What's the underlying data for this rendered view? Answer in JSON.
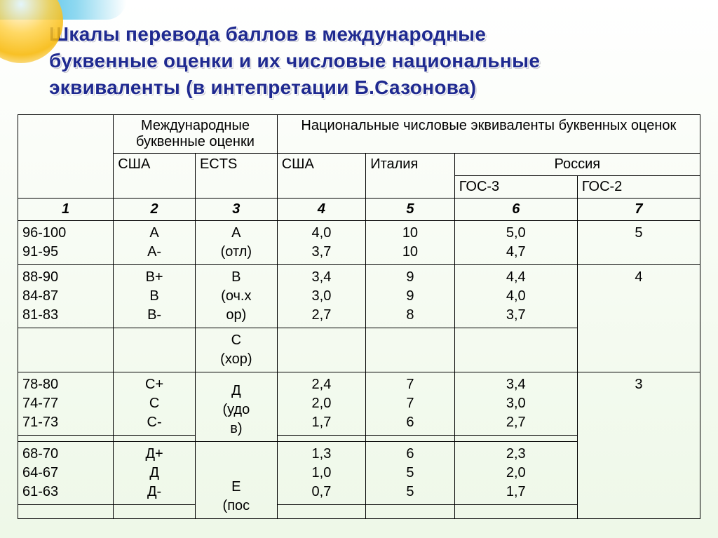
{
  "title_line1": "Шкалы перевода баллов в международные",
  "title_line2": "буквенные оценки и их числовые национальные",
  "title_line3": "эквиваленты  (в интепретации Б.Сазонова)",
  "header": {
    "intl": "Международные буквенные оценки",
    "nat": "Национальные числовые эквиваленты буквенных оценок",
    "usa": "США",
    "ects": "ECTS",
    "italy": "Италия",
    "russia": "Россия",
    "gos3": "ГОС-3",
    "gos2": "ГОС-2"
  },
  "colnums": [
    "1",
    "2",
    "3",
    "4",
    "5",
    "6",
    "7"
  ],
  "rows": {
    "r1": {
      "range": "96-100\n91-95",
      "usa_l": "A\nA-",
      "ects": "A\n(отл)",
      "usa_n": "4,0\n3,7",
      "italy": "10\n10",
      "gos3": "5,0\n4,7",
      "gos2": "5"
    },
    "r2": {
      "range": "88-90\n84-87\n81-83",
      "usa_l": "B+\nB\nB-",
      "ects": "B\n(оч.х\nор)",
      "usa_n": "3,4\n3,0\n2,7",
      "italy": "9\n9\n8",
      "gos3": "4,4\n4,0\n3,7",
      "gos2": "4"
    },
    "r3": {
      "ects": "C\n(хор)"
    },
    "r4": {
      "range": "78-80\n74-77\n71-73",
      "usa_l": "C+\nC\nC-",
      "usa_n": "2,4\n2,0\n1,7",
      "italy": "7\n7\n6",
      "gos3": "3,4\n3,0\n2,7",
      "gos2": "3"
    },
    "r5": {
      "ects": "Д\n(удо\nв)"
    },
    "r6": {
      "range": "68-70\n64-67\n61-63",
      "usa_l": "Д+\nД\nД-",
      "usa_n": "1,3\n1,0\n0,7",
      "italy": "6\n5\n5",
      "gos3": "2,3\n2,0\n1,7"
    },
    "r7": {
      "ects": "E\n(пос"
    }
  },
  "colors": {
    "title": "#1f2a90",
    "border": "#000000",
    "bg_top": "#ffffff",
    "bg_bottom": "#eef8e8"
  },
  "fontsize": {
    "title": 28,
    "cell": 20
  }
}
